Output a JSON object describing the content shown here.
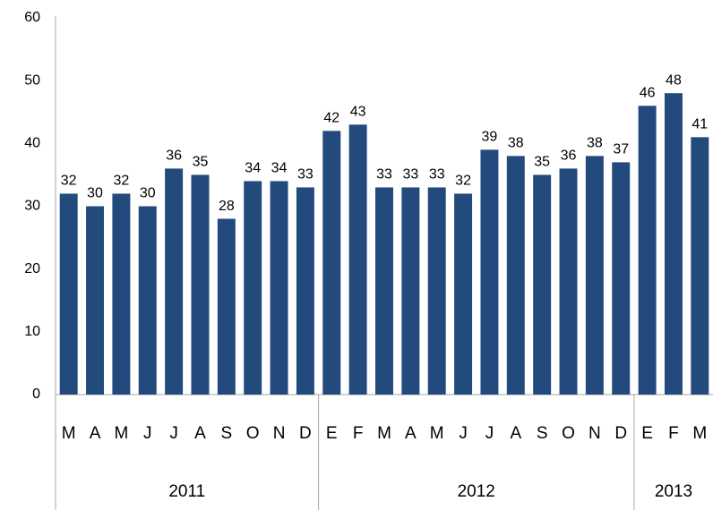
{
  "chart_data": {
    "type": "bar",
    "color": "#234a7c",
    "ylim": [
      0,
      60
    ],
    "yticks": [
      0,
      10,
      20,
      30,
      40,
      50,
      60
    ],
    "groups": [
      {
        "label": "2011",
        "categories": [
          "M",
          "A",
          "M",
          "J",
          "J",
          "A",
          "S",
          "O",
          "N",
          "D"
        ],
        "values": [
          32,
          30,
          32,
          30,
          36,
          35,
          28,
          34,
          34,
          33
        ]
      },
      {
        "label": "2012",
        "categories": [
          "E",
          "F",
          "M",
          "A",
          "M",
          "J",
          "J",
          "A",
          "S",
          "O",
          "N",
          "D"
        ],
        "values": [
          42,
          43,
          33,
          33,
          33,
          32,
          39,
          38,
          35,
          36,
          38,
          37
        ]
      },
      {
        "label": "2013",
        "categories": [
          "E",
          "F",
          "M"
        ],
        "values": [
          46,
          48,
          41
        ]
      }
    ]
  }
}
